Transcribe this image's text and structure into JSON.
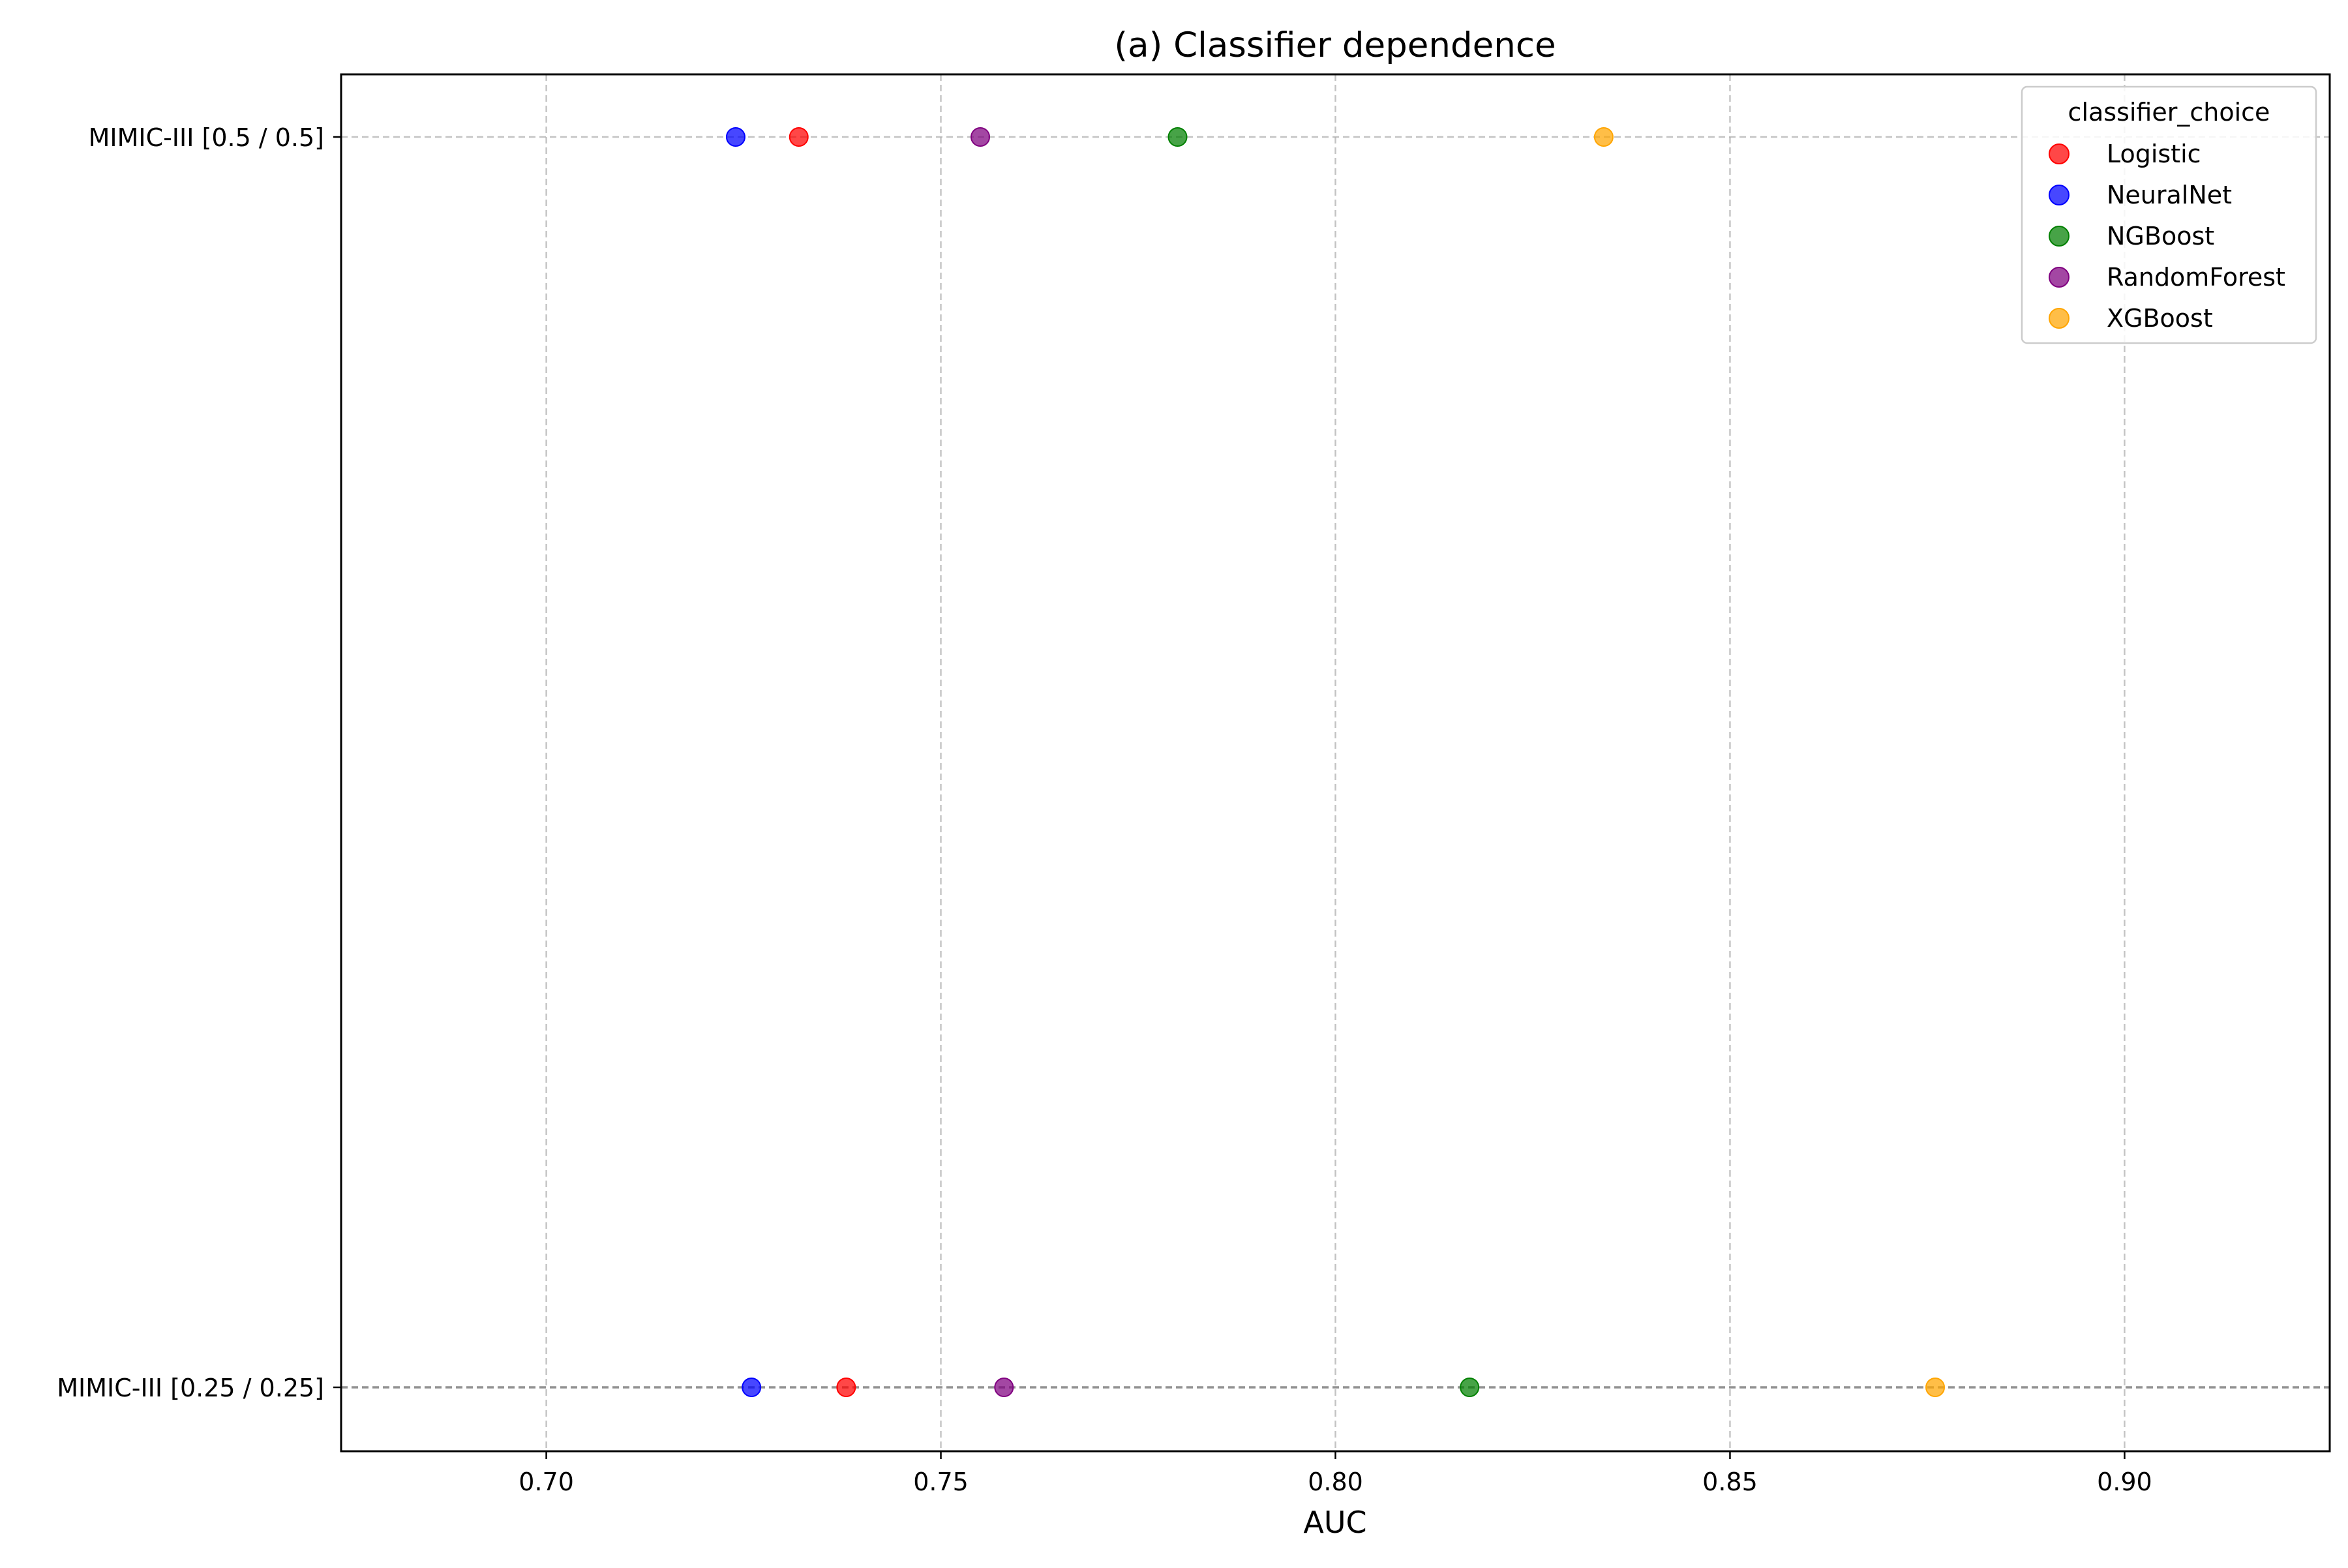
{
  "chart_data": {
    "type": "scatter",
    "title": "(a) Classifier dependence",
    "xlabel": "AUC",
    "ylabel": "",
    "xlim": [
      0.674,
      0.926
    ],
    "xticks": [
      0.7,
      0.75,
      0.8,
      0.85,
      0.9
    ],
    "xtick_labels": [
      "0.70",
      "0.75",
      "0.80",
      "0.85",
      "0.90"
    ],
    "categories": [
      "MIMIC-III [0.5 / 0.5]",
      "MIMIC-III [0.25 / 0.25]"
    ],
    "grid": true,
    "legend": {
      "title": "classifier_choice",
      "placement": "top-right"
    },
    "series": [
      {
        "name": "Logistic",
        "color": "#ff0000",
        "values": [
          0.732,
          0.738
        ]
      },
      {
        "name": "NeuralNet",
        "color": "#0000ff",
        "values": [
          0.724,
          0.726
        ]
      },
      {
        "name": "NGBoost",
        "color": "#008000",
        "values": [
          0.78,
          0.817
        ]
      },
      {
        "name": "RandomForest",
        "color": "#800080",
        "values": [
          0.755,
          0.758
        ]
      },
      {
        "name": "XGBoost",
        "color": "#ffa500",
        "values": [
          0.834,
          0.876
        ]
      }
    ]
  }
}
